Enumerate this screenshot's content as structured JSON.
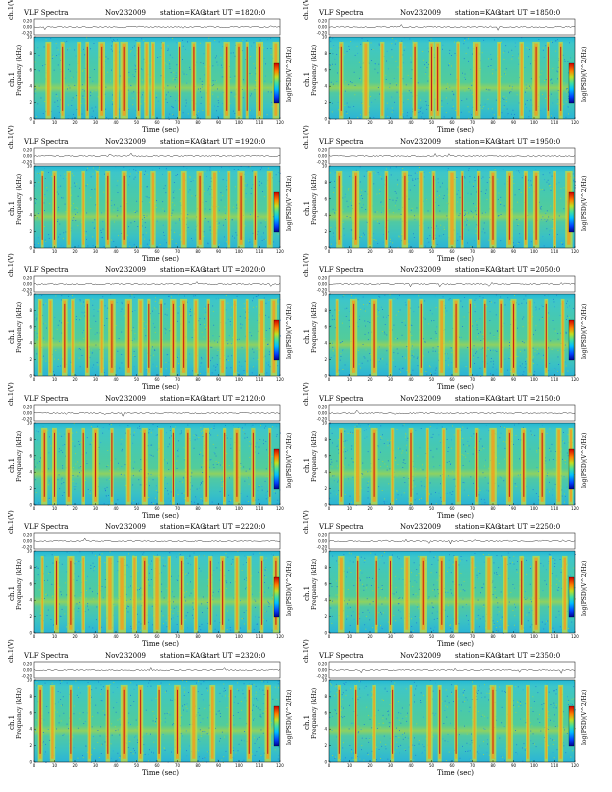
{
  "chart_data": [
    {
      "type": "heatmap",
      "title": "VLF Spectra",
      "date": "Nov232009",
      "station": "station=KAG",
      "start_ut": "start  UT  =1820:0",
      "xlabel": "Time  (sec)",
      "ylabel_top": "ch.1(V)",
      "ylabel_freq": "Frequency  (kHz)",
      "ylabel_ch": "ch.1",
      "colorbar_label": "log(PSD)(V^2/Hz)",
      "x_ticks": [
        "0",
        "10",
        "20",
        "30",
        "40",
        "50",
        "60",
        "70",
        "80",
        "90",
        "100",
        "110",
        "120"
      ],
      "y_ticks": [
        "0",
        "2",
        "4",
        "6",
        "8",
        "10"
      ],
      "top_ticks": [
        "0.20",
        "0.00",
        "-0.20"
      ],
      "xlim": [
        0,
        120
      ],
      "ylim": [
        0,
        10
      ],
      "bursts": [
        7,
        14,
        22,
        26,
        33,
        40,
        44,
        51,
        55,
        58,
        63,
        71,
        78,
        85,
        94,
        100,
        104,
        110,
        118
      ]
    },
    {
      "type": "heatmap",
      "title": "VLF Spectra",
      "date": "Nov232009",
      "station": "station=KAG",
      "start_ut": "start  UT  =1850:0",
      "xlabel": "Time  (sec)",
      "ylabel_top": "ch.1(V)",
      "ylabel_freq": "Frequency  (kHz)",
      "ylabel_ch": "ch.1",
      "colorbar_label": "log(PSD)(V^2/Hz)",
      "x_ticks": [
        "0",
        "10",
        "20",
        "30",
        "40",
        "50",
        "60",
        "70",
        "80",
        "90",
        "100",
        "110",
        "120"
      ],
      "y_ticks": [
        "0",
        "2",
        "4",
        "6",
        "8",
        "10"
      ],
      "top_ticks": [
        "0.20",
        "0.00",
        "-0.20"
      ],
      "xlim": [
        0,
        120
      ],
      "ylim": [
        0,
        10
      ],
      "bursts": [
        6,
        18,
        26,
        35,
        42,
        50,
        53,
        63,
        72,
        83,
        94,
        101,
        107,
        113
      ]
    },
    {
      "type": "heatmap",
      "title": "VLF Spectra",
      "date": "Nov232009",
      "station": "station=KAG",
      "start_ut": "start  UT  =1920:0",
      "xlabel": "Time  (sec)",
      "ylabel_top": "ch.1(V)",
      "ylabel_freq": "Frequency  (kHz)",
      "ylabel_ch": "ch.1",
      "colorbar_label": "log(PSD)(V^2/Hz)",
      "x_ticks": [
        "0",
        "10",
        "20",
        "30",
        "40",
        "50",
        "60",
        "70",
        "80",
        "90",
        "100",
        "110",
        "120"
      ],
      "y_ticks": [
        "0",
        "2",
        "4",
        "6",
        "8",
        "10"
      ],
      "top_ticks": [
        "0.20",
        "0.00",
        "-0.20"
      ],
      "xlim": [
        0,
        120
      ],
      "ylim": [
        0,
        10
      ],
      "bursts": [
        4,
        10,
        17,
        24,
        31,
        36,
        44,
        52,
        58,
        66,
        73,
        81,
        88,
        95,
        101,
        108,
        115
      ]
    },
    {
      "type": "heatmap",
      "title": "VLF Spectra",
      "date": "Nov232009",
      "station": "station=KAG",
      "start_ut": "start  UT  =1950:0",
      "xlabel": "Time  (sec)",
      "ylabel_top": "ch.1(V)",
      "ylabel_freq": "Frequency  (kHz)",
      "ylabel_ch": "ch.1",
      "colorbar_label": "log(PSD)(V^2/Hz)",
      "x_ticks": [
        "0",
        "10",
        "20",
        "30",
        "40",
        "50",
        "60",
        "70",
        "80",
        "90",
        "100",
        "110",
        "120"
      ],
      "y_ticks": [
        "0",
        "2",
        "4",
        "6",
        "8",
        "10"
      ],
      "top_ticks": [
        "0.20",
        "0.00",
        "-0.20"
      ],
      "xlim": [
        0,
        120
      ],
      "ylim": [
        0,
        10
      ],
      "bursts": [
        5,
        13,
        20,
        28,
        37,
        45,
        51,
        60,
        65,
        73,
        80,
        88,
        96,
        101,
        110,
        117
      ]
    },
    {
      "type": "heatmap",
      "title": "VLF Spectra",
      "date": "Nov232009",
      "station": "station=KAG",
      "start_ut": "start  UT  =2020:0",
      "xlabel": "Time  (sec)",
      "ylabel_top": "ch.1(V)",
      "ylabel_freq": "Frequency  (kHz)",
      "ylabel_ch": "ch.1",
      "colorbar_label": "log(PSD)(V^2/Hz)",
      "x_ticks": [
        "0",
        "10",
        "20",
        "30",
        "40",
        "50",
        "60",
        "70",
        "80",
        "90",
        "100",
        "110",
        "120"
      ],
      "y_ticks": [
        "0",
        "2",
        "4",
        "6",
        "8",
        "10"
      ],
      "top_ticks": [
        "0.20",
        "0.00",
        "-0.20"
      ],
      "xlim": [
        0,
        120
      ],
      "ylim": [
        0,
        10
      ],
      "bursts": [
        3,
        8,
        15,
        19,
        26,
        33,
        38,
        46,
        52,
        56,
        62,
        68,
        73,
        79,
        85,
        92,
        98,
        104,
        111,
        117
      ]
    },
    {
      "type": "heatmap",
      "title": "VLF Spectra",
      "date": "Nov232009",
      "station": "station=KAG",
      "start_ut": "start  UT  =2050:0",
      "xlabel": "Time  (sec)",
      "ylabel_top": "ch.1(V)",
      "ylabel_freq": "Frequency  (kHz)",
      "ylabel_ch": "ch.1",
      "colorbar_label": "log(PSD)(V^2/Hz)",
      "x_ticks": [
        "0",
        "10",
        "20",
        "30",
        "40",
        "50",
        "60",
        "70",
        "80",
        "90",
        "100",
        "110",
        "120"
      ],
      "y_ticks": [
        "0",
        "2",
        "4",
        "6",
        "8",
        "10"
      ],
      "top_ticks": [
        "0.20",
        "0.00",
        "-0.20"
      ],
      "xlim": [
        0,
        120
      ],
      "ylim": [
        0,
        10
      ],
      "bursts": [
        4,
        12,
        22,
        30,
        39,
        45,
        55,
        62,
        69,
        76,
        84,
        90,
        98,
        106,
        114
      ]
    },
    {
      "type": "heatmap",
      "title": "VLF Spectra",
      "date": "Nov232009",
      "station": "station=KAG",
      "start_ut": "start  UT  =2120:0",
      "xlabel": "Time  (sec)",
      "ylabel_top": "ch.1(V)",
      "ylabel_freq": "Frequency  (kHz)",
      "ylabel_ch": "ch.1",
      "colorbar_label": "log(PSD)(V^2/Hz)",
      "x_ticks": [
        "0",
        "10",
        "20",
        "30",
        "40",
        "50",
        "60",
        "70",
        "80",
        "90",
        "100",
        "110",
        "120"
      ],
      "y_ticks": [
        "0",
        "2",
        "4",
        "6",
        "8",
        "10"
      ],
      "top_ticks": [
        "0.20",
        "0.00",
        "-0.20"
      ],
      "xlim": [
        0,
        120
      ],
      "ylim": [
        0,
        10
      ],
      "bursts": [
        5,
        10,
        17,
        24,
        30,
        38,
        46,
        54,
        62,
        68,
        75,
        84,
        93,
        99,
        107,
        115
      ]
    },
    {
      "type": "heatmap",
      "title": "VLF Spectra",
      "date": "Nov232009",
      "station": "station=KAG",
      "start_ut": "start  UT  =2150:0",
      "xlabel": "Time  (sec)",
      "ylabel_top": "ch.1(V)",
      "ylabel_freq": "Frequency  (kHz)",
      "ylabel_ch": "ch.1",
      "colorbar_label": "log(PSD)(V^2/Hz)",
      "x_ticks": [
        "0",
        "10",
        "20",
        "30",
        "40",
        "50",
        "60",
        "70",
        "80",
        "90",
        "100",
        "110",
        "120"
      ],
      "y_ticks": [
        "0",
        "2",
        "4",
        "6",
        "8",
        "10"
      ],
      "top_ticks": [
        "0.20",
        "0.00",
        "-0.20"
      ],
      "xlim": [
        0,
        120
      ],
      "ylim": [
        0,
        10
      ],
      "bursts": [
        6,
        14,
        22,
        31,
        40,
        48,
        56,
        63,
        72,
        80,
        88,
        95,
        104,
        112,
        118
      ]
    },
    {
      "type": "heatmap",
      "title": "VLF Spectra",
      "date": "Nov232009",
      "station": "station=KAG",
      "start_ut": "start  UT  =2220:0",
      "xlabel": "Time  (sec)",
      "ylabel_top": "ch.1(V)",
      "ylabel_freq": "Frequency  (kHz)",
      "ylabel_ch": "ch.1",
      "colorbar_label": "log(PSD)(V^2/Hz)",
      "x_ticks": [
        "0",
        "10",
        "20",
        "30",
        "40",
        "50",
        "60",
        "70",
        "80",
        "90",
        "100",
        "110",
        "120"
      ],
      "y_ticks": [
        "0",
        "2",
        "4",
        "6",
        "8",
        "10"
      ],
      "top_ticks": [
        "0.20",
        "0.00",
        "-0.20"
      ],
      "xlim": [
        0,
        120
      ],
      "ylim": [
        0,
        10
      ],
      "bursts": [
        4,
        11,
        18,
        24,
        32,
        37,
        43,
        49,
        54,
        60,
        66,
        72,
        79,
        86,
        92,
        99,
        105,
        111,
        118
      ]
    },
    {
      "type": "heatmap",
      "title": "VLF Spectra",
      "date": "Nov232009",
      "station": "station=KAG",
      "start_ut": "start  UT  =2250:0",
      "xlabel": "Time  (sec)",
      "ylabel_top": "ch.1(V)",
      "ylabel_freq": "Frequency  (kHz)",
      "ylabel_ch": "ch.1",
      "colorbar_label": "log(PSD)(V^2/Hz)",
      "x_ticks": [
        "0",
        "10",
        "20",
        "30",
        "40",
        "50",
        "60",
        "70",
        "80",
        "90",
        "100",
        "110",
        "120"
      ],
      "y_ticks": [
        "0",
        "2",
        "4",
        "6",
        "8",
        "10"
      ],
      "top_ticks": [
        "0.20",
        "0.00",
        "-0.20"
      ],
      "xlim": [
        0,
        120
      ],
      "ylim": [
        0,
        10
      ],
      "bursts": [
        6,
        14,
        23,
        30,
        38,
        46,
        55,
        62,
        70,
        78,
        86,
        94,
        101,
        108,
        115
      ]
    },
    {
      "type": "heatmap",
      "title": "VLF Spectra",
      "date": "Nov232009",
      "station": "station=KAG",
      "start_ut": "start  UT  =2320:0",
      "xlabel": "Time  (sec)",
      "ylabel_top": "ch.1(V)",
      "ylabel_freq": "Frequency  (kHz)",
      "ylabel_ch": "ch.1",
      "colorbar_label": "log(PSD)(V^2/Hz)",
      "x_ticks": [
        "0",
        "10",
        "20",
        "30",
        "40",
        "50",
        "60",
        "70",
        "80",
        "90",
        "100",
        "110",
        "120"
      ],
      "y_ticks": [
        "0",
        "2",
        "4",
        "6",
        "8",
        "10"
      ],
      "top_ticks": [
        "0.20",
        "0.00",
        "-0.20"
      ],
      "xlim": [
        0,
        120
      ],
      "ylim": [
        0,
        10
      ],
      "bursts": [
        3,
        9,
        18,
        27,
        36,
        44,
        52,
        61,
        70,
        78,
        87,
        96,
        105,
        114
      ]
    },
    {
      "type": "heatmap",
      "title": "VLF Spectra",
      "date": "Nov232009",
      "station": "station=KAG",
      "start_ut": "start  UT  =2350:0",
      "xlabel": "Time  (sec)",
      "ylabel_top": "ch.1(V)",
      "ylabel_freq": "Frequency  (kHz)",
      "ylabel_ch": "ch.1",
      "colorbar_label": "log(PSD)(V^2/Hz)",
      "x_ticks": [
        "0",
        "10",
        "20",
        "30",
        "40",
        "50",
        "60",
        "70",
        "80",
        "90",
        "100",
        "110",
        "120"
      ],
      "y_ticks": [
        "0",
        "2",
        "4",
        "6",
        "8",
        "10"
      ],
      "top_ticks": [
        "0.20",
        "0.00",
        "-0.20"
      ],
      "xlim": [
        0,
        120
      ],
      "ylim": [
        0,
        10
      ],
      "bursts": [
        5,
        13,
        22,
        31,
        40,
        49,
        54,
        62,
        71,
        80,
        88,
        97,
        106,
        113
      ]
    }
  ]
}
